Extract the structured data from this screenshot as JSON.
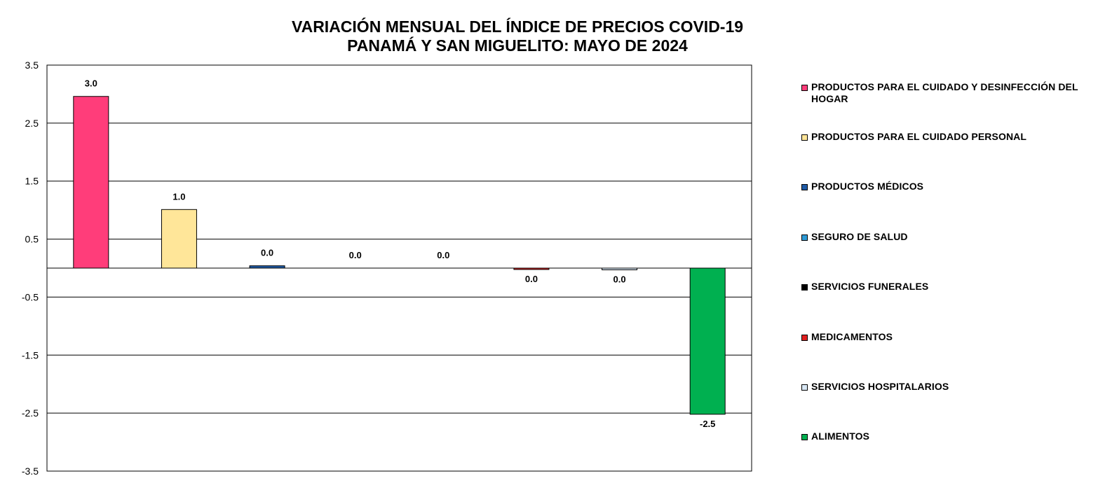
{
  "chart_data": {
    "type": "bar",
    "title": [
      "VARIACIÓN MENSUAL DEL ÍNDICE DE PRECIOS COVID-19",
      "PANAMÁ Y SAN MIGUELITO: MAYO DE 2024"
    ],
    "ylim": [
      -3.5,
      3.5
    ],
    "yticks": [
      3.5,
      2.5,
      1.5,
      0.5,
      -0.5,
      -1.5,
      -2.5,
      -3.5
    ],
    "grid": true,
    "legend_position": "right",
    "series": [
      {
        "name": "PRODUCTOS PARA EL CUIDADO Y DESINFECCIÓN DEL HOGAR",
        "value": 2.96,
        "label": "3.0",
        "color": "#FF3D7A"
      },
      {
        "name": "PRODUCTOS PARA EL CUIDADO PERSONAL",
        "value": 1.01,
        "label": "1.0",
        "color": "#FFE699"
      },
      {
        "name": "PRODUCTOS MÉDICOS",
        "value": 0.04,
        "label": "0.0",
        "color": "#1F5BA6"
      },
      {
        "name": "SEGURO DE SALUD",
        "value": 0.0,
        "label": "0.0",
        "color": "#2E9BD6"
      },
      {
        "name": "SERVICIOS FUNERALES",
        "value": 0.0,
        "label": "0.0",
        "color": "#000000"
      },
      {
        "name": "MEDICAMENTOS",
        "value": -0.02,
        "label": "0.0",
        "color": "#E02020"
      },
      {
        "name": "SERVICIOS HOSPITALARIOS",
        "value": -0.03,
        "label": "0.0",
        "color": "#D9E8F5"
      },
      {
        "name": "ALIMENTOS",
        "value": -2.52,
        "label": "-2.5",
        "color": "#00B050"
      }
    ]
  }
}
